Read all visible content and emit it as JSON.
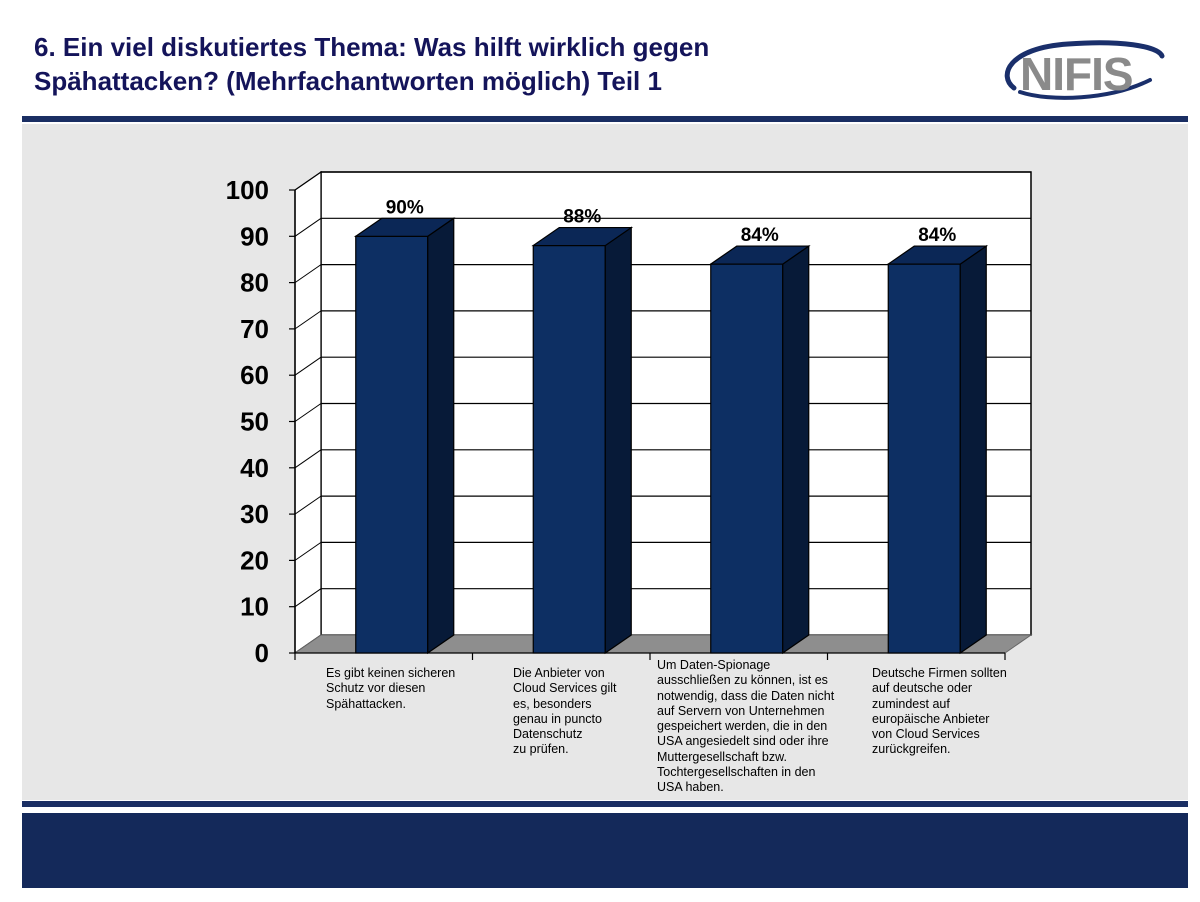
{
  "slide": {
    "title_line1": "6. Ein viel diskutiertes Thema: Was hilft wirklich gegen",
    "title_line2": "Spähattacken? (Mehrfachantworten möglich) Teil 1",
    "logo_text": "NIFIS"
  },
  "colors": {
    "title": "#14145a",
    "rule": "#1a2e63",
    "panel": "#e7e7e7",
    "footer": "#14295a",
    "bar_front": "#0d2f63",
    "bar_top": "#0b2756",
    "bar_side": "#071a38",
    "floor": "#8e8e8e",
    "wall": "#ffffff"
  },
  "chart_data": {
    "type": "bar",
    "style": "3d-column",
    "categories": [
      "Es gibt keinen sicheren\nSchutz vor diesen\nSpähattacken.",
      "Die Anbieter von\nCloud Services gilt\nes, besonders\ngenau in puncto\nDatenschutz\nzu prüfen.",
      "Um Daten-Spionage\nausschließen zu können, ist es\nnotwendig, dass die Daten nicht\nauf Servern von Unternehmen\ngespeichert werden, die in den\nUSA angesiedelt sind oder ihre\nMuttergesellschaft bzw.\nTochtergesellschaften in den\nUSA haben.",
      "Deutsche Firmen sollten\nauf deutsche oder\nzumindest auf\neuropäische Anbieter\nvon Cloud Services\nzurückgreifen."
    ],
    "values": [
      90,
      88,
      84,
      84
    ],
    "data_labels": [
      "90%",
      "88%",
      "84%",
      "84%"
    ],
    "yticks": [
      "0",
      "10",
      "20",
      "30",
      "40",
      "50",
      "60",
      "70",
      "80",
      "90",
      "100"
    ],
    "ylim": [
      0,
      100
    ],
    "grid": true,
    "legend": "none"
  }
}
